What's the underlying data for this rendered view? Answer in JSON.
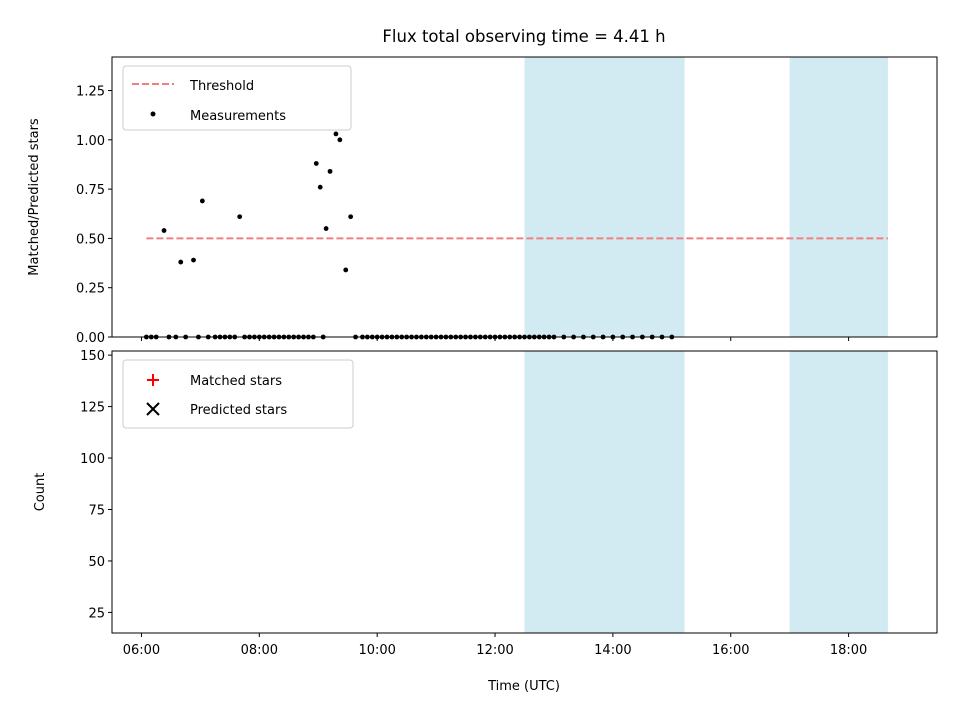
{
  "title": "Flux total observing time = 4.41 h",
  "colors": {
    "threshold": "#f08080",
    "shade": "#add8e6",
    "measurement": "#000000",
    "matched": "#ff0000",
    "predicted": "#000000"
  },
  "chart_data": [
    {
      "type": "scatter",
      "ylabel": "Matched/Predicted stars",
      "xlabel": "",
      "xlim": [
        "05:30",
        "19:30"
      ],
      "ylim": [
        0,
        1.42
      ],
      "yticks": [
        "0.00",
        "0.25",
        "0.50",
        "0.75",
        "1.00",
        "1.25"
      ],
      "shaded_regions": [
        [
          "12:30",
          "15:13"
        ],
        [
          "17:00",
          "18:40"
        ]
      ],
      "threshold": {
        "name": "Threshold",
        "y": 0.5,
        "x": [
          "06:05",
          "18:40"
        ]
      },
      "legend": {
        "position": "top-left",
        "entries": [
          "Threshold",
          "Measurements"
        ]
      },
      "series": [
        {
          "name": "Measurements",
          "points": [
            [
              "06:05",
              0
            ],
            [
              "06:10",
              0
            ],
            [
              "06:15",
              0
            ],
            [
              "06:23",
              0.54
            ],
            [
              "06:28",
              0
            ],
            [
              "06:35",
              0
            ],
            [
              "06:40",
              0.38
            ],
            [
              "06:45",
              0
            ],
            [
              "06:53",
              0.39
            ],
            [
              "06:58",
              0
            ],
            [
              "07:02",
              0.69
            ],
            [
              "07:08",
              0
            ],
            [
              "07:15",
              0
            ],
            [
              "07:20",
              0
            ],
            [
              "07:25",
              0
            ],
            [
              "07:30",
              0
            ],
            [
              "07:35",
              0
            ],
            [
              "07:40",
              0.61
            ],
            [
              "07:45",
              0
            ],
            [
              "07:50",
              0
            ],
            [
              "07:55",
              0
            ],
            [
              "08:00",
              0
            ],
            [
              "08:05",
              0
            ],
            [
              "08:10",
              0
            ],
            [
              "08:15",
              0
            ],
            [
              "08:20",
              0
            ],
            [
              "08:25",
              0
            ],
            [
              "08:30",
              0
            ],
            [
              "08:35",
              0
            ],
            [
              "08:40",
              0
            ],
            [
              "08:45",
              0
            ],
            [
              "08:50",
              0
            ],
            [
              "08:55",
              0
            ],
            [
              "08:58",
              0.88
            ],
            [
              "09:02",
              0.76
            ],
            [
              "09:05",
              0
            ],
            [
              "09:08",
              0.55
            ],
            [
              "09:12",
              0.84
            ],
            [
              "09:18",
              1.03
            ],
            [
              "09:22",
              1.0
            ],
            [
              "09:28",
              0.34
            ],
            [
              "09:33",
              0.61
            ],
            [
              "09:38",
              0
            ],
            [
              "09:45",
              0
            ],
            [
              "09:50",
              0
            ],
            [
              "09:55",
              0
            ],
            [
              "10:00",
              0
            ],
            [
              "10:05",
              0
            ],
            [
              "10:10",
              0
            ],
            [
              "10:15",
              0
            ],
            [
              "10:20",
              0
            ],
            [
              "10:25",
              0
            ],
            [
              "10:30",
              0
            ],
            [
              "10:35",
              0
            ],
            [
              "10:40",
              0
            ],
            [
              "10:45",
              0
            ],
            [
              "10:50",
              0
            ],
            [
              "10:55",
              0
            ],
            [
              "11:00",
              0
            ],
            [
              "11:05",
              0
            ],
            [
              "11:10",
              0
            ],
            [
              "11:15",
              0
            ],
            [
              "11:20",
              0
            ],
            [
              "11:25",
              0
            ],
            [
              "11:30",
              0
            ],
            [
              "11:35",
              0
            ],
            [
              "11:40",
              0
            ],
            [
              "11:45",
              0
            ],
            [
              "11:50",
              0
            ],
            [
              "11:55",
              0
            ],
            [
              "12:00",
              0
            ],
            [
              "12:05",
              0
            ],
            [
              "12:10",
              0
            ],
            [
              "12:15",
              0
            ],
            [
              "12:20",
              0
            ],
            [
              "12:25",
              0
            ],
            [
              "12:30",
              0
            ],
            [
              "12:35",
              0
            ],
            [
              "12:40",
              0
            ],
            [
              "12:45",
              0
            ],
            [
              "12:50",
              0
            ],
            [
              "12:55",
              0
            ],
            [
              "13:00",
              0
            ],
            [
              "13:10",
              0
            ],
            [
              "13:20",
              0
            ],
            [
              "13:30",
              0
            ],
            [
              "13:40",
              0
            ],
            [
              "13:50",
              0
            ],
            [
              "14:00",
              0
            ],
            [
              "14:10",
              0
            ],
            [
              "14:20",
              0
            ],
            [
              "14:30",
              0
            ],
            [
              "14:40",
              0
            ],
            [
              "14:50",
              0
            ],
            [
              "15:00",
              0
            ]
          ]
        }
      ]
    },
    {
      "type": "scatter",
      "ylabel": "Count",
      "xlabel": "Time (UTC)",
      "xlim": [
        "05:30",
        "19:30"
      ],
      "ylim": [
        15,
        152
      ],
      "yticks": [
        "25",
        "50",
        "75",
        "100",
        "125",
        "150"
      ],
      "xticks": [
        "06:00",
        "08:00",
        "10:00",
        "12:00",
        "14:00",
        "16:00",
        "18:00"
      ],
      "shaded_regions": [
        [
          "12:30",
          "15:13"
        ],
        [
          "17:00",
          "18:40"
        ]
      ],
      "legend": {
        "position": "top-left",
        "entries": [
          "Matched stars",
          "Predicted stars"
        ]
      },
      "series": [
        {
          "name": "Matched stars",
          "marker": "+",
          "points": []
        },
        {
          "name": "Predicted stars",
          "marker": "x",
          "points": []
        }
      ]
    }
  ]
}
